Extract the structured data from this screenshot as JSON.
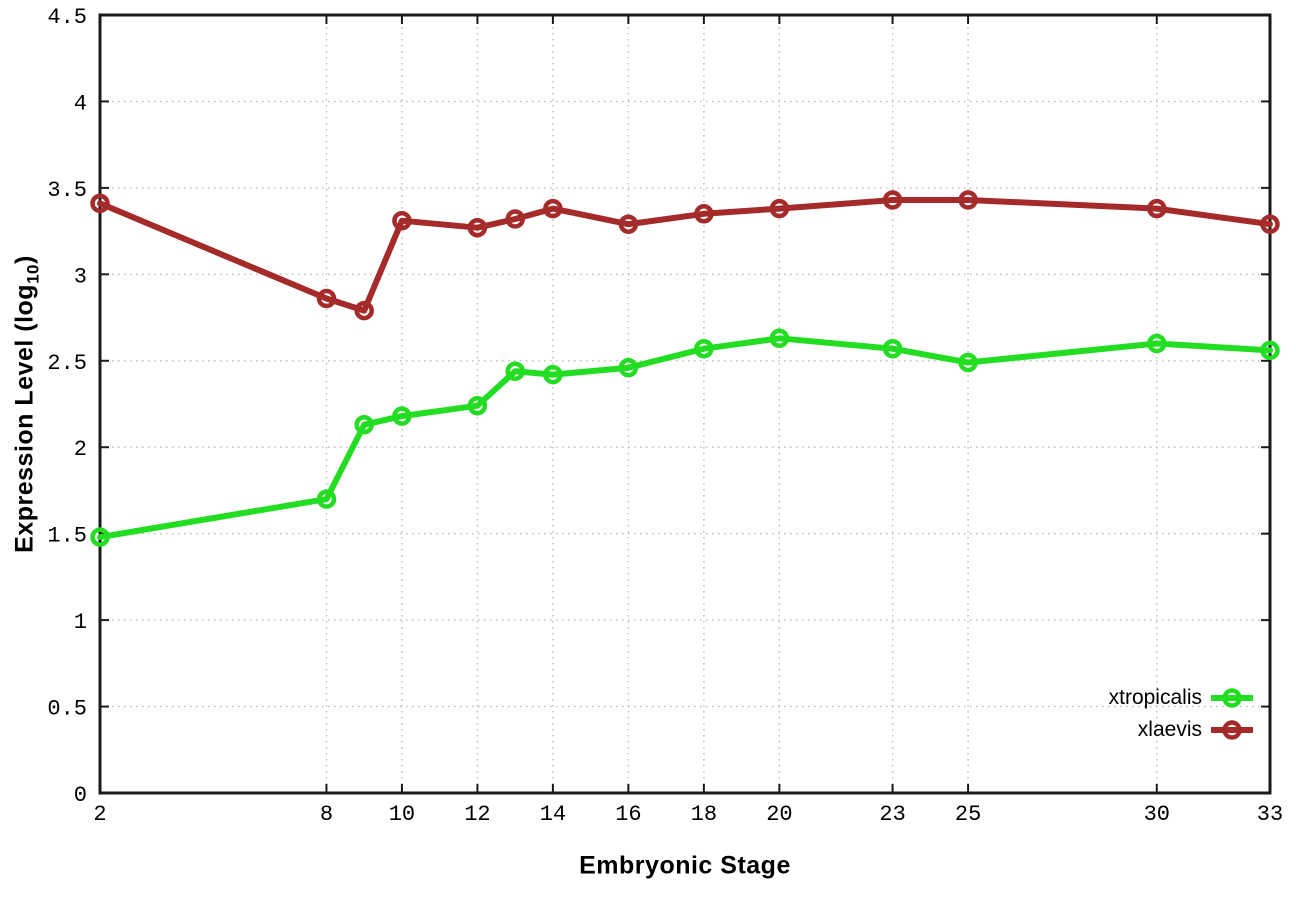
{
  "figure": {
    "xlabel": "Embryonic Stage",
    "ylabel": {
      "prefix": "Expression Level (log",
      "sub": "10",
      "suffix": ")"
    },
    "legend": [
      {
        "label": "xtropicalis",
        "color": "#22dd22"
      },
      {
        "label": "xlaevis",
        "color": "#a52a2a"
      }
    ],
    "colors": {
      "grid": "#bbbbbb",
      "axis": "#1a1a1a",
      "background": "#ffffff"
    }
  },
  "chart_data": {
    "type": "line",
    "title": "",
    "xlabel": "Embryonic Stage",
    "ylabel": "Expression Level (log10)",
    "xlim": [
      2,
      33
    ],
    "ylim": [
      0,
      4.5
    ],
    "x_ticks": [
      2,
      8,
      10,
      12,
      14,
      16,
      18,
      20,
      23,
      25,
      30,
      33
    ],
    "y_ticks": [
      0,
      0.5,
      1,
      1.5,
      2,
      2.5,
      3,
      3.5,
      4,
      4.5
    ],
    "grid": true,
    "grid_style": "dotted",
    "marker": "open-circle",
    "legend_position": "bottom-right",
    "x": [
      2,
      8,
      9,
      10,
      12,
      13,
      14,
      16,
      18,
      20,
      23,
      25,
      30,
      33
    ],
    "series": [
      {
        "name": "xtropicalis",
        "color": "#22dd22",
        "values": [
          1.48,
          1.7,
          2.13,
          2.18,
          2.24,
          2.44,
          2.42,
          2.46,
          2.57,
          2.63,
          2.57,
          2.49,
          2.6,
          2.56
        ]
      },
      {
        "name": "xlaevis",
        "color": "#a52a2a",
        "values": [
          3.41,
          2.86,
          2.79,
          3.31,
          3.27,
          3.32,
          3.38,
          3.29,
          3.35,
          3.38,
          3.43,
          3.43,
          3.38,
          3.29
        ]
      }
    ]
  }
}
